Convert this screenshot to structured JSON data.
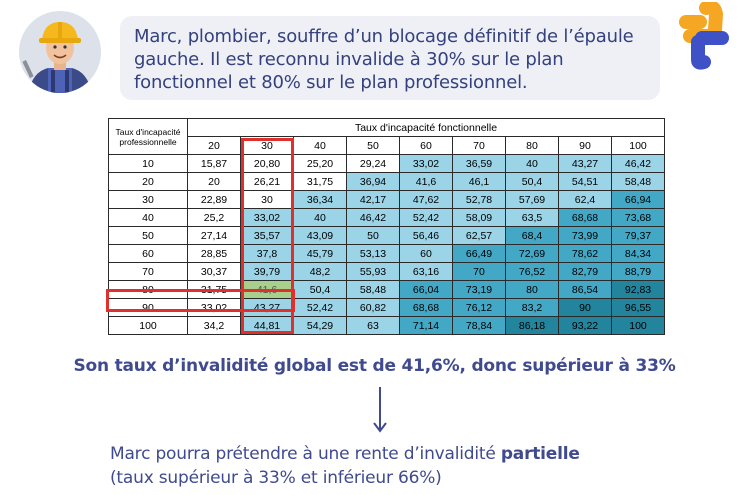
{
  "bubble": {
    "text": "Marc, plombier, souffre d’un blocage définitif de l’épaule gauche. Il est reconnu invalide à 30% sur le plan fonctionnel et 80% sur le plan professionnel."
  },
  "colors": {
    "text_blue": "#34417e",
    "bubble_bg": "#eef0f6",
    "highlight_red": "#e0302e",
    "highlight_green": "#a8d08d",
    "shade_1": "#ffffff",
    "shade_2": "#9bd3e7",
    "shade_3": "#43a8c6",
    "shade_4": "#23859d",
    "logo_orange": "#f5a623",
    "logo_blue": "#3f51c6"
  },
  "table": {
    "corner_label": "Taux d'incapacité professionnelle",
    "fonct_title": "Taux d'incapacité fonctionnelle",
    "col_headers": [
      "20",
      "30",
      "40",
      "50",
      "60",
      "70",
      "80",
      "90",
      "100"
    ],
    "row_headers": [
      "10",
      "20",
      "30",
      "40",
      "50",
      "60",
      "70",
      "80",
      "90",
      "100"
    ],
    "cells": [
      [
        "15,87",
        "20,80",
        "25,20",
        "29,24",
        "33,02",
        "36,59",
        "40",
        "43,27",
        "46,42"
      ],
      [
        "20",
        "26,21",
        "31,75",
        "36,94",
        "41,6",
        "46,1",
        "50,4",
        "54,51",
        "58,48"
      ],
      [
        "22,89",
        "30",
        "36,34",
        "42,17",
        "47,62",
        "52,78",
        "57,69",
        "62,4",
        "66,94"
      ],
      [
        "25,2",
        "33,02",
        "40",
        "46,42",
        "52,42",
        "58,09",
        "63,5",
        "68,68",
        "73,68"
      ],
      [
        "27,14",
        "35,57",
        "43,09",
        "50",
        "56,46",
        "62,57",
        "68,4",
        "73,99",
        "79,37"
      ],
      [
        "28,85",
        "37,8",
        "45,79",
        "53,13",
        "60",
        "66,49",
        "72,69",
        "78,62",
        "84,34"
      ],
      [
        "30,37",
        "39,79",
        "48,2",
        "55,93",
        "63,16",
        "70",
        "76,52",
        "82,79",
        "88,79"
      ],
      [
        "31,75",
        "41,6",
        "50,4",
        "58,48",
        "66,04",
        "73,19",
        "80",
        "86,54",
        "92,83"
      ],
      [
        "33,02",
        "43,27",
        "52,42",
        "60,82",
        "68,68",
        "76,12",
        "83,2",
        "90",
        "96,55"
      ],
      [
        "34,2",
        "44,81",
        "54,29",
        "63",
        "71,14",
        "78,84",
        "86,18",
        "93,22",
        "100"
      ]
    ],
    "shades": [
      [
        1,
        1,
        1,
        1,
        2,
        2,
        2,
        2,
        2
      ],
      [
        1,
        1,
        1,
        2,
        2,
        2,
        2,
        2,
        2
      ],
      [
        1,
        1,
        2,
        2,
        2,
        2,
        2,
        2,
        3
      ],
      [
        1,
        2,
        2,
        2,
        2,
        2,
        2,
        3,
        3
      ],
      [
        1,
        2,
        2,
        2,
        2,
        2,
        3,
        3,
        3
      ],
      [
        1,
        2,
        2,
        2,
        2,
        3,
        3,
        3,
        3
      ],
      [
        1,
        2,
        2,
        2,
        2,
        3,
        3,
        3,
        3
      ],
      [
        1,
        2,
        2,
        2,
        3,
        3,
        3,
        3,
        4
      ],
      [
        1,
        2,
        2,
        2,
        3,
        3,
        3,
        4,
        4
      ],
      [
        1,
        2,
        2,
        2,
        3,
        3,
        4,
        4,
        4
      ]
    ],
    "highlight": {
      "row": "80",
      "col": "30",
      "value": "41,6"
    }
  },
  "conclusion": "Son taux d’invalidité global est de 41,6%, donc supérieur à 33%",
  "result": {
    "prefix": "Marc pourra prétendre à une rente d’invalidité ",
    "bold": "partielle",
    "line2": "(taux supérieur à 33% et inférieur 66%)"
  },
  "icons": {
    "avatar": "construction-worker-avatar",
    "logo": "medical-cross-logo",
    "arrow": "arrow-down-icon"
  }
}
